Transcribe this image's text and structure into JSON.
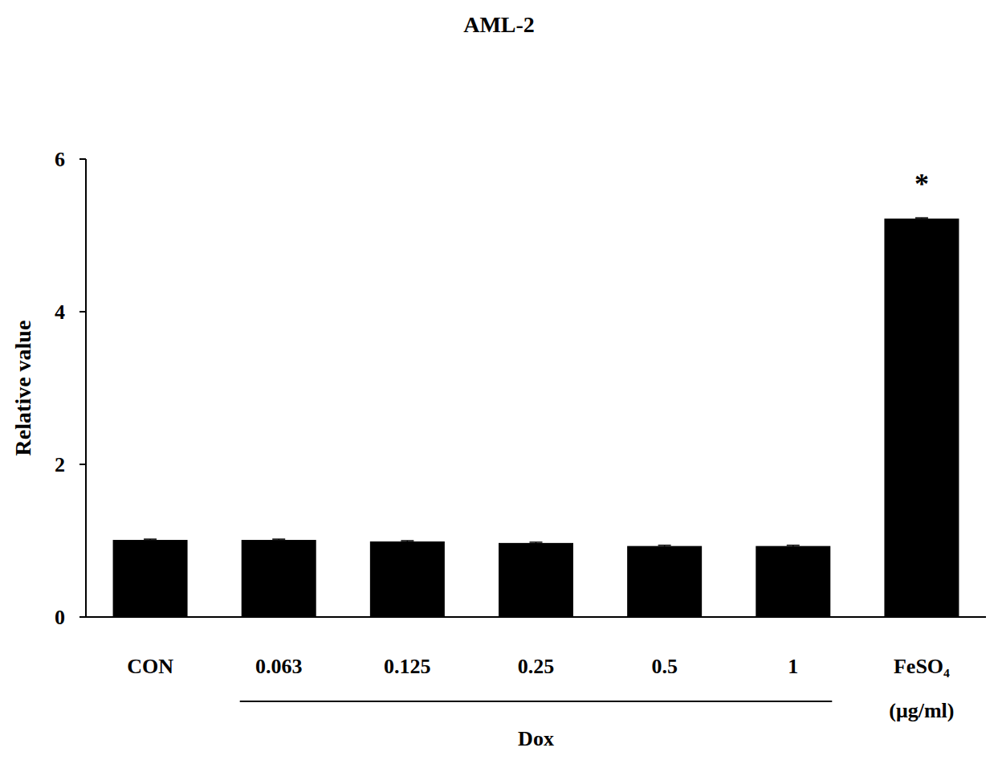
{
  "chart_data": {
    "type": "bar",
    "title": "AML-2",
    "categories": [
      "CON",
      "0.063",
      "0.125",
      "0.25",
      "0.5",
      "1",
      "FeSO₄"
    ],
    "values": [
      1.01,
      1.01,
      0.99,
      0.97,
      0.93,
      0.93,
      5.22
    ],
    "errors": [
      0.01,
      0.01,
      0.01,
      0.01,
      0.01,
      0.01,
      0.01
    ],
    "color": "#000000",
    "y_label": "Relative value",
    "x_unit": "(μg/ml)",
    "group": {
      "label": "Dox",
      "from": "0.063",
      "to": "1"
    },
    "annotations": [
      {
        "text": "*",
        "category": "FeSO₄"
      }
    ],
    "ylim": [
      0,
      6
    ],
    "yticks": [
      0,
      2,
      4,
      6
    ],
    "grid": false
  }
}
